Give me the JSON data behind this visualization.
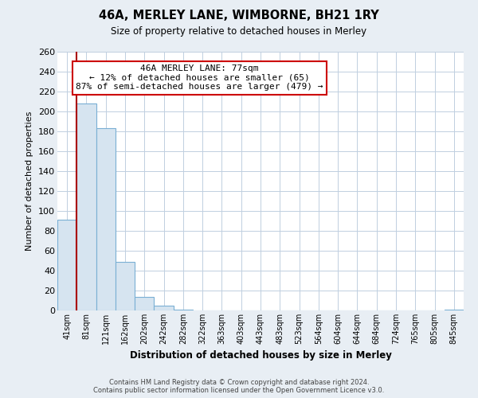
{
  "title": "46A, MERLEY LANE, WIMBORNE, BH21 1RY",
  "subtitle": "Size of property relative to detached houses in Merley",
  "xlabel": "Distribution of detached houses by size in Merley",
  "ylabel": "Number of detached properties",
  "bin_labels": [
    "41sqm",
    "81sqm",
    "121sqm",
    "162sqm",
    "202sqm",
    "242sqm",
    "282sqm",
    "322sqm",
    "363sqm",
    "403sqm",
    "443sqm",
    "483sqm",
    "523sqm",
    "564sqm",
    "604sqm",
    "644sqm",
    "684sqm",
    "724sqm",
    "765sqm",
    "805sqm",
    "845sqm"
  ],
  "bar_values": [
    91,
    208,
    183,
    49,
    14,
    5,
    1,
    0,
    0,
    0,
    0,
    0,
    0,
    0,
    0,
    0,
    0,
    0,
    0,
    0,
    1
  ],
  "bar_fill_color": "#d6e4f0",
  "bar_edge_color": "#7aafd4",
  "marker_color": "#aa0000",
  "ylim": [
    0,
    260
  ],
  "yticks": [
    0,
    20,
    40,
    60,
    80,
    100,
    120,
    140,
    160,
    180,
    200,
    220,
    240,
    260
  ],
  "annotation_title": "46A MERLEY LANE: 77sqm",
  "annotation_line1": "← 12% of detached houses are smaller (65)",
  "annotation_line2": "87% of semi-detached houses are larger (479) →",
  "footer_line1": "Contains HM Land Registry data © Crown copyright and database right 2024.",
  "footer_line2": "Contains public sector information licensed under the Open Government Licence v3.0.",
  "background_color": "#e8eef4",
  "plot_background": "#ffffff",
  "grid_color": "#c0cfe0"
}
